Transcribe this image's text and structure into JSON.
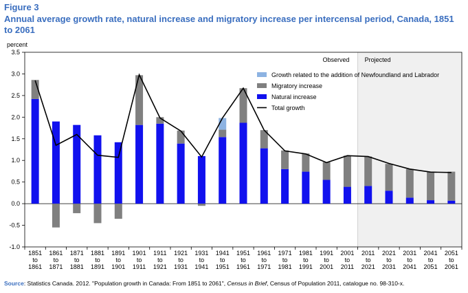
{
  "figure_label": "Figure 3",
  "title": "Annual average growth rate, natural increase and migratory increase per intercensal period, Canada, 1851 to 2061",
  "colors": {
    "natural": "#1111ee",
    "migratory": "#808080",
    "newfoundland": "#8db3e2",
    "total": "#000000",
    "projected_bg": "#f0f0f0",
    "title": "#3a6ebf"
  },
  "source": {
    "key": "Source",
    "text_before": ":  Statistics Canada. 2012. \"Population growth in Canada: From 1851 to 2061\", ",
    "italic": "Census in Brief",
    "text_after": ", Census of Population 2011, catalogue no. 98-310-x."
  },
  "chart_data": {
    "type": "bar",
    "ylabel": "percent",
    "ylim": [
      -1.0,
      3.5
    ],
    "yticks": [
      "3.5",
      "3.0",
      "2.5",
      "2.0",
      "1.5",
      "1.0",
      "0.5",
      "0.0",
      "-0.5",
      "-1.0"
    ],
    "yticks_values": [
      3.5,
      3.0,
      2.5,
      2.0,
      1.5,
      1.0,
      0.5,
      0.0,
      -0.5,
      -1.0
    ],
    "categories": [
      [
        "1851",
        "to",
        "1861"
      ],
      [
        "1861",
        "to",
        "1871"
      ],
      [
        "1871",
        "to",
        "1881"
      ],
      [
        "1881",
        "to",
        "1891"
      ],
      [
        "1891",
        "to",
        "1901"
      ],
      [
        "1901",
        "to",
        "1911"
      ],
      [
        "1911",
        "to",
        "1921"
      ],
      [
        "1921",
        "to",
        "1931"
      ],
      [
        "1931",
        "to",
        "1941"
      ],
      [
        "1941",
        "to",
        "1951"
      ],
      [
        "1951",
        "to",
        "1961"
      ],
      [
        "1961",
        "to",
        "1971"
      ],
      [
        "1971",
        "to",
        "1981"
      ],
      [
        "1981",
        "to",
        "1991"
      ],
      [
        "1991",
        "to",
        "2001"
      ],
      [
        "2001",
        "to",
        "2011"
      ],
      [
        "2011",
        "to",
        "2021"
      ],
      [
        "2021",
        "to",
        "2031"
      ],
      [
        "2031",
        "to",
        "2041"
      ],
      [
        "2041",
        "to",
        "2051"
      ],
      [
        "2051",
        "to",
        "2061"
      ]
    ],
    "period_labels": {
      "observed": "Observed",
      "projected": "Projected"
    },
    "projected_start_index": 16,
    "legend_position": "top-right",
    "series": [
      {
        "name": "Growth related to the addition of Newfoundland and Labrador",
        "key": "newfoundland",
        "values": [
          0,
          0,
          0,
          0,
          0,
          0,
          0,
          0,
          0,
          0.27,
          0,
          0,
          0,
          0,
          0,
          0,
          0,
          0,
          0,
          0,
          0
        ]
      },
      {
        "name": "Migratory increase",
        "key": "migratory",
        "values": [
          0.44,
          -0.55,
          -0.22,
          -0.45,
          -0.35,
          1.15,
          0.15,
          0.3,
          -0.05,
          0.17,
          0.8,
          0.42,
          0.43,
          0.42,
          0.41,
          0.72,
          0.68,
          0.62,
          0.66,
          0.66,
          0.67
        ]
      },
      {
        "name": "Natural increase",
        "key": "natural",
        "values": [
          2.42,
          1.9,
          1.82,
          1.58,
          1.42,
          1.82,
          1.85,
          1.39,
          1.1,
          1.54,
          1.87,
          1.28,
          0.8,
          0.74,
          0.55,
          0.39,
          0.41,
          0.3,
          0.14,
          0.08,
          0.07
        ]
      },
      {
        "name": "Total growth",
        "key": "total",
        "type": "line",
        "values": [
          2.85,
          1.35,
          1.6,
          1.12,
          1.07,
          2.98,
          1.98,
          1.68,
          1.08,
          1.98,
          2.67,
          1.7,
          1.22,
          1.15,
          0.95,
          1.11,
          1.09,
          0.93,
          0.8,
          0.73,
          0.72
        ]
      }
    ]
  }
}
